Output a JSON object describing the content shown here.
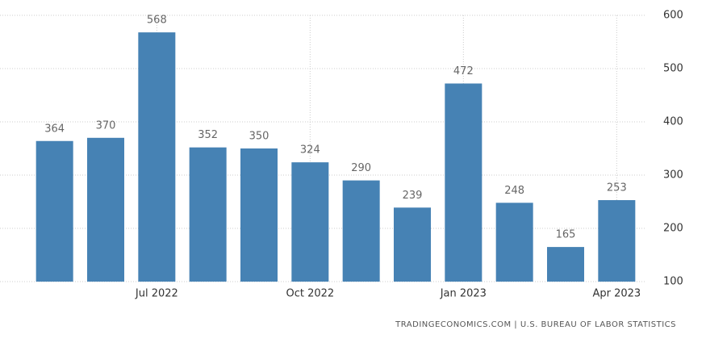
{
  "chart_data": {
    "type": "bar",
    "categories": [
      null,
      null,
      "Jul 2022",
      null,
      null,
      "Oct 2022",
      null,
      null,
      "Jan 2023",
      null,
      null,
      "Apr 2023"
    ],
    "values": [
      364,
      370,
      568,
      352,
      350,
      324,
      290,
      239,
      472,
      248,
      165,
      253
    ],
    "color": "#4682b4",
    "ylim": [
      100,
      600
    ],
    "yticks": [
      100,
      200,
      300,
      400,
      500,
      600
    ],
    "grid": true,
    "source": "TRADINGECONOMICS.COM | U.S. BUREAU OF LABOR STATISTICS"
  }
}
